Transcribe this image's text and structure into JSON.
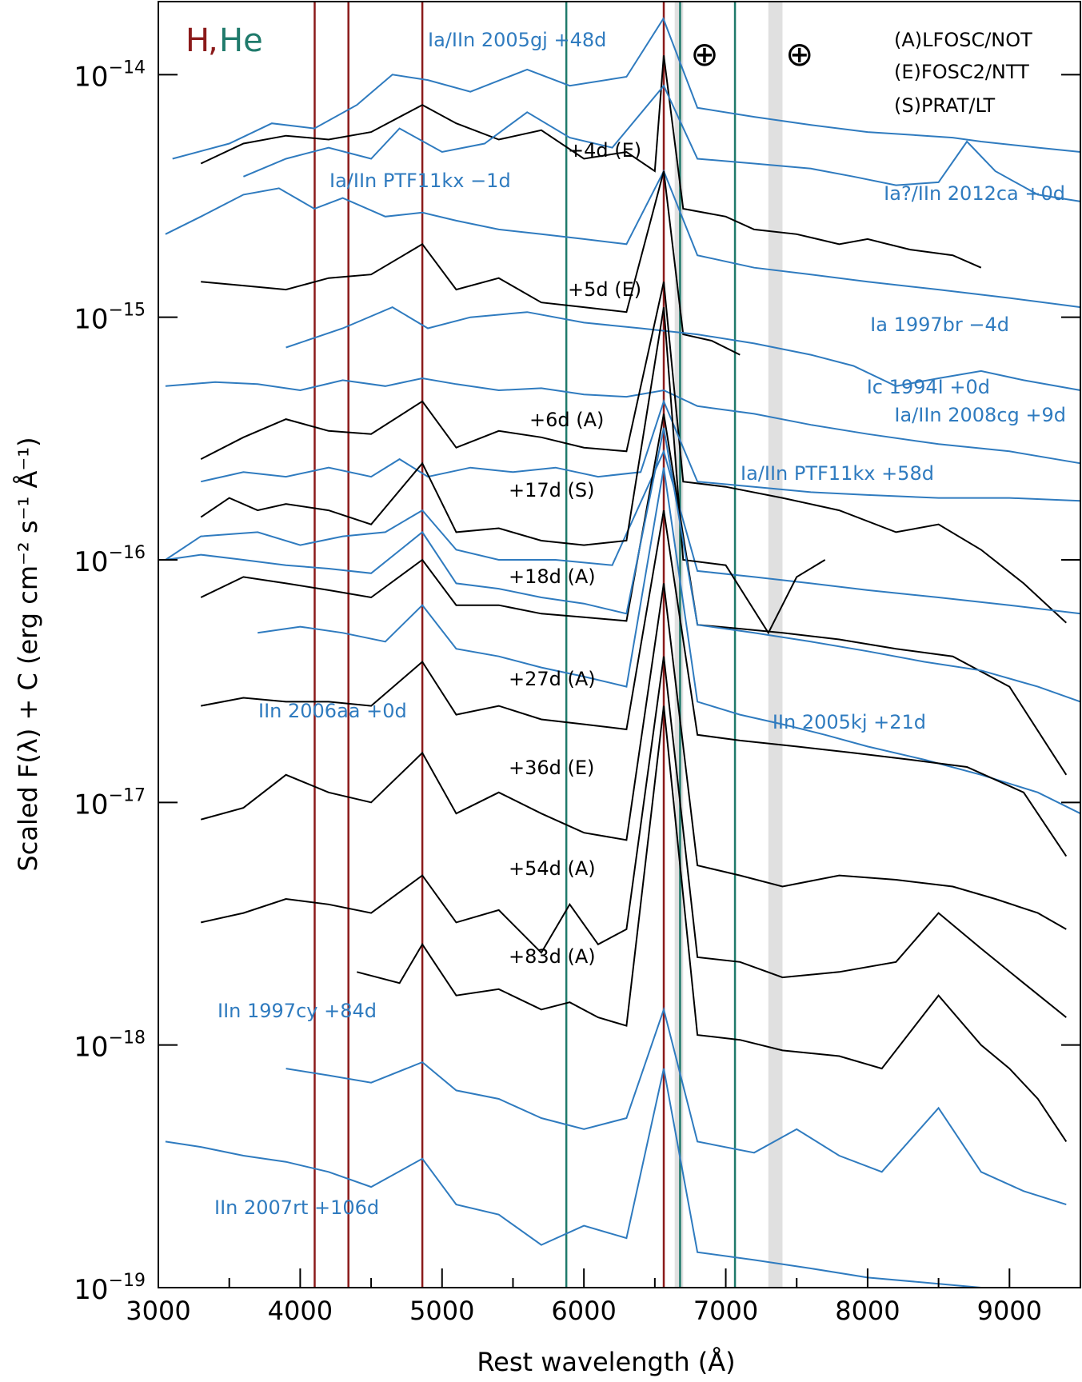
{
  "chart_data": {
    "type": "line",
    "title": "",
    "xlabel": "Rest wavelength (Å)",
    "ylabel": "Scaled F(λ) + C (erg cm⁻² s⁻¹ Å⁻¹)",
    "xlim": [
      3000,
      9500
    ],
    "ylim": [
      1e-19,
      2e-14
    ],
    "yscale": "log",
    "grid": false,
    "x_ticks": [
      3000,
      4000,
      5000,
      6000,
      7000,
      8000,
      9000
    ],
    "y_ticks": [
      {
        "value": 1e-14,
        "base": "10",
        "exp": "−14"
      },
      {
        "value": 1e-15,
        "base": "10",
        "exp": "−15"
      },
      {
        "value": 1e-16,
        "base": "10",
        "exp": "−16"
      },
      {
        "value": 1e-17,
        "base": "10",
        "exp": "−17"
      },
      {
        "value": 1e-18,
        "base": "10",
        "exp": "−18"
      },
      {
        "value": 1e-19,
        "base": "10",
        "exp": "−19"
      }
    ],
    "line_ids": {
      "h_label": "H",
      "comma": ",",
      "he_label": "He",
      "h_color": "#8b1a1a",
      "he_color": "#1f7a6b",
      "h_lines": [
        4102,
        4340,
        4861,
        6563
      ],
      "he_lines": [
        5876,
        6678,
        7065
      ]
    },
    "telluric": {
      "symbol": "⊕",
      "bands": [
        [
          6640,
          6700
        ],
        [
          7300,
          7400
        ]
      ],
      "symbol_x": [
        6850,
        7520
      ]
    },
    "instrument_legend": [
      "(A)LFOSC/NOT",
      "(E)FOSC2/NTT",
      "(S)PRAT/LT"
    ],
    "colors": {
      "observed": "#000000",
      "comparison": "#2f7bbf",
      "band": "#e0e0e0"
    },
    "series": [
      {
        "label": "Ia/IIn 2005gj +48d",
        "kind": "comparison",
        "x": [
          3100,
          3500,
          3800,
          4100,
          4400,
          4650,
          4900,
          5200,
          5600,
          5900,
          6300,
          6560,
          6800,
          7200,
          7600,
          8000,
          8400,
          8600,
          8800,
          9200,
          9500
        ],
        "y": [
          4.5e-15,
          5.2e-15,
          6.3e-15,
          6e-15,
          7.5e-15,
          1e-14,
          9.5e-15,
          8.5e-15,
          1.05e-14,
          9e-15,
          9.8e-15,
          1.7e-14,
          7.3e-15,
          6.7e-15,
          6.2e-15,
          5.8e-15,
          5.6e-15,
          5.5e-15,
          5.3e-15,
          5e-15,
          4.8e-15
        ]
      },
      {
        "label": "+4d (E)",
        "kind": "observed",
        "x": [
          3300,
          3600,
          3900,
          4200,
          4500,
          4861,
          5100,
          5400,
          5700,
          6000,
          6300,
          6500,
          6563,
          6700,
          7000,
          7200,
          7500,
          7800,
          8000,
          8300,
          8600,
          8800
        ],
        "y": [
          4.3e-15,
          5.2e-15,
          5.6e-15,
          5.4e-15,
          5.8e-15,
          7.5e-15,
          6.3e-15,
          5.4e-15,
          5.9e-15,
          4.5e-15,
          4.8e-15,
          4e-15,
          1.2e-14,
          2.8e-15,
          2.6e-15,
          2.3e-15,
          2.2e-15,
          2e-15,
          2.1e-15,
          1.9e-15,
          1.8e-15,
          1.6e-15
        ]
      },
      {
        "label": "Ia?/IIn 2012ca +0d",
        "kind": "comparison",
        "x": [
          3600,
          3900,
          4200,
          4500,
          4700,
          5000,
          5300,
          5600,
          5900,
          6200,
          6563,
          6800,
          7200,
          7600,
          7900,
          8200,
          8500,
          8700,
          8900,
          9200,
          9500
        ],
        "y": [
          3.8e-15,
          4.5e-15,
          5e-15,
          4.5e-15,
          6e-15,
          4.8e-15,
          5.2e-15,
          7e-15,
          5.5e-15,
          5e-15,
          9e-15,
          4.5e-15,
          4.3e-15,
          4.1e-15,
          3.8e-15,
          3.5e-15,
          3.6e-15,
          5.3e-15,
          4e-15,
          3.2e-15,
          3e-15
        ]
      },
      {
        "label": "Ia/IIn PTF11kx −1d",
        "kind": "comparison",
        "x": [
          3050,
          3300,
          3600,
          3850,
          4100,
          4300,
          4600,
          4861,
          5100,
          5400,
          5700,
          6000,
          6300,
          6563,
          6800,
          7200,
          7600,
          8000,
          8500,
          9000,
          9500
        ],
        "y": [
          2.2e-15,
          2.6e-15,
          3.2e-15,
          3.4e-15,
          2.8e-15,
          3.1e-15,
          2.6e-15,
          2.7e-15,
          2.5e-15,
          2.3e-15,
          2.2e-15,
          2.1e-15,
          2e-15,
          4e-15,
          1.8e-15,
          1.6e-15,
          1.5e-15,
          1.4e-15,
          1.3e-15,
          1.2e-15,
          1.1e-15
        ]
      },
      {
        "label": "+5d (E)",
        "kind": "observed",
        "x": [
          3300,
          3600,
          3900,
          4200,
          4500,
          4861,
          5100,
          5400,
          5700,
          6000,
          6300,
          6563,
          6700,
          6900,
          7100
        ],
        "y": [
          1.4e-15,
          1.35e-15,
          1.3e-15,
          1.45e-15,
          1.5e-15,
          2e-15,
          1.3e-15,
          1.45e-15,
          1.15e-15,
          1.1e-15,
          1.05e-15,
          4e-15,
          8.5e-16,
          8e-16,
          7e-16
        ]
      },
      {
        "label": "Ia 1997br −4d",
        "kind": "comparison",
        "x": [
          3900,
          4300,
          4650,
          4900,
          5200,
          5600,
          6000,
          6400,
          6800,
          7200,
          7600,
          7900,
          8200,
          8500,
          8800,
          9100,
          9500
        ],
        "y": [
          7.5e-16,
          9e-16,
          1.1e-15,
          9e-16,
          1e-15,
          1.05e-15,
          9.5e-16,
          9e-16,
          8.5e-16,
          7.8e-16,
          7e-16,
          6.3e-16,
          5.2e-16,
          5.6e-16,
          6e-16,
          5.5e-16,
          5e-16
        ]
      },
      {
        "label": "Ic 1994I +0d",
        "kind": "comparison",
        "x": [
          3050,
          3400,
          3700,
          4000,
          4300,
          4600,
          4861,
          5100,
          5400,
          5700,
          6000,
          6300,
          6563,
          6800,
          7200,
          7600,
          8000,
          8500,
          9000,
          9500
        ],
        "y": [
          5.2e-16,
          5.4e-16,
          5.3e-16,
          5e-16,
          5.5e-16,
          5.2e-16,
          5.6e-16,
          5.3e-16,
          5e-16,
          5.1e-16,
          4.8e-16,
          4.7e-16,
          5e-16,
          4.3e-16,
          4e-16,
          3.6e-16,
          3.3e-16,
          3e-16,
          2.8e-16,
          2.5e-16
        ]
      },
      {
        "label": "+6d (A)",
        "kind": "observed",
        "x": [
          3300,
          3600,
          3900,
          4200,
          4500,
          4861,
          5100,
          5400,
          5700,
          6000,
          6300,
          6563,
          6700,
          7000,
          7400,
          7800,
          8200,
          8500,
          8800,
          9100,
          9400
        ],
        "y": [
          2.6e-16,
          3.2e-16,
          3.8e-16,
          3.4e-16,
          3.3e-16,
          4.5e-16,
          2.9e-16,
          3.4e-16,
          3.2e-16,
          2.9e-16,
          2.8e-16,
          1.4e-15,
          2.1e-16,
          2e-16,
          1.8e-16,
          1.6e-16,
          1.3e-16,
          1.4e-16,
          1.1e-16,
          8e-17,
          5.5e-17
        ]
      },
      {
        "label": "Ia/IIn 2008cg +9d",
        "kind": "comparison",
        "x": [
          3300,
          3600,
          3900,
          4200,
          4500,
          4700,
          4900,
          5200,
          5500,
          5800,
          6100,
          6400,
          6563,
          6800,
          7200,
          7600,
          8000,
          8500,
          9000,
          9500
        ],
        "y": [
          2.1e-16,
          2.3e-16,
          2.2e-16,
          2.4e-16,
          2.2e-16,
          2.6e-16,
          2.2e-16,
          2.4e-16,
          2.3e-16,
          2.4e-16,
          2.2e-16,
          2.3e-16,
          4.5e-16,
          2.1e-16,
          2e-16,
          1.9e-16,
          1.85e-16,
          1.8e-16,
          1.8e-16,
          1.75e-16
        ]
      },
      {
        "label": "Ia/IIn PTF11kx +58d",
        "kind": "comparison",
        "x": [
          3050,
          3300,
          3700,
          4000,
          4300,
          4600,
          4861,
          5100,
          5400,
          5800,
          6200,
          6563,
          6800,
          7200,
          7600,
          8000,
          8500,
          9000,
          9500
        ],
        "y": [
          1e-16,
          1.25e-16,
          1.3e-16,
          1.15e-16,
          1.25e-16,
          1.3e-16,
          1.6e-16,
          1.1e-16,
          1e-16,
          1e-16,
          9.5e-17,
          2.8e-16,
          9e-17,
          8.5e-17,
          8e-17,
          7.5e-17,
          7e-17,
          6.5e-17,
          6e-17
        ]
      },
      {
        "label": "+17d (S)",
        "kind": "observed",
        "x": [
          3300,
          3500,
          3700,
          3900,
          4200,
          4500,
          4861,
          5100,
          5400,
          5700,
          6000,
          6300,
          6563,
          6700,
          7000,
          7300,
          7500,
          7700
        ],
        "y": [
          1.5e-16,
          1.8e-16,
          1.6e-16,
          1.7e-16,
          1.6e-16,
          1.4e-16,
          2.5e-16,
          1.3e-16,
          1.35e-16,
          1.2e-16,
          1.15e-16,
          1.2e-16,
          1.1e-15,
          1e-16,
          9.5e-17,
          5e-17,
          8.5e-17,
          1e-16
        ]
      },
      {
        "label": "+18d (A)",
        "kind": "observed",
        "x": [
          3300,
          3600,
          3900,
          4200,
          4500,
          4861,
          5100,
          5400,
          5700,
          6000,
          6300,
          6563,
          6800,
          7100,
          7400,
          7800,
          8200,
          8600,
          9000,
          9400
        ],
        "y": [
          7e-17,
          8.5e-17,
          8e-17,
          7.5e-17,
          7e-17,
          1e-16,
          6.5e-17,
          6.5e-17,
          6e-17,
          5.8e-17,
          5.6e-17,
          4e-16,
          5.4e-17,
          5.2e-17,
          5e-17,
          4.7e-17,
          4.3e-17,
          4e-17,
          3e-17,
          1.3e-17
        ]
      },
      {
        "label": "IIn 2005kj +21d",
        "kind": "comparison",
        "x": [
          3700,
          4000,
          4300,
          4600,
          4861,
          5100,
          5400,
          5700,
          6000,
          6300,
          6563,
          6800,
          7100,
          7400,
          7700,
          8000,
          8400,
          8800,
          9200,
          9500
        ],
        "y": [
          5e-17,
          5.3e-17,
          5e-17,
          4.6e-17,
          6.5e-17,
          4.3e-17,
          4e-17,
          3.6e-17,
          3.3e-17,
          3e-17,
          2.4e-16,
          2.6e-17,
          2.3e-17,
          2.1e-17,
          1.9e-17,
          1.7e-17,
          1.5e-17,
          1.3e-17,
          1.1e-17,
          9e-18
        ]
      },
      {
        "label": "IIn 2006aa +0d",
        "kind": "comparison",
        "x": [
          3050,
          3300,
          3600,
          3900,
          4200,
          4500,
          4861,
          5100,
          5400,
          5700,
          6000,
          6300,
          6563,
          6800,
          7200,
          7600,
          8000,
          8400,
          8800,
          9200,
          9500
        ],
        "y": [
          1e-16,
          1.05e-16,
          1e-16,
          9.5e-17,
          9.2e-17,
          8.8e-17,
          1.3e-16,
          8e-17,
          7.6e-17,
          7e-17,
          6.6e-17,
          6e-17,
          3.5e-16,
          5.4e-17,
          5e-17,
          4.6e-17,
          4.2e-17,
          3.8e-17,
          3.5e-17,
          3e-17,
          2.6e-17
        ]
      },
      {
        "label": "+27d (A)",
        "kind": "observed",
        "x": [
          3300,
          3600,
          3900,
          4200,
          4500,
          4861,
          5100,
          5400,
          5700,
          6000,
          6300,
          6563,
          6800,
          7100,
          7500,
          7900,
          8300,
          8700,
          9100,
          9400
        ],
        "y": [
          2.5e-17,
          2.7e-17,
          2.6e-17,
          2.6e-17,
          2.5e-17,
          3.8e-17,
          2.3e-17,
          2.5e-17,
          2.2e-17,
          2.1e-17,
          2e-17,
          1.6e-16,
          1.9e-17,
          1.8e-17,
          1.7e-17,
          1.6e-17,
          1.5e-17,
          1.4e-17,
          1.1e-17,
          6e-18
        ]
      },
      {
        "label": "+36d (E)",
        "kind": "observed",
        "x": [
          3300,
          3600,
          3900,
          4200,
          4500,
          4861,
          5100,
          5400,
          5700,
          6000,
          6300,
          6563,
          6800,
          7100,
          7400,
          7800,
          8200,
          8600,
          8900,
          9200,
          9400
        ],
        "y": [
          8.5e-18,
          9.5e-18,
          1.3e-17,
          1.1e-17,
          1e-17,
          1.6e-17,
          9e-18,
          1.1e-17,
          9e-18,
          7.5e-18,
          7e-18,
          8e-17,
          5.5e-18,
          5e-18,
          4.5e-18,
          5e-18,
          4.8e-18,
          4.5e-18,
          4e-18,
          3.5e-18,
          3e-18
        ]
      },
      {
        "label": "+54d (A)",
        "kind": "observed",
        "x": [
          3300,
          3600,
          3900,
          4200,
          4500,
          4861,
          5100,
          5400,
          5700,
          5900,
          6100,
          6300,
          6563,
          6800,
          7100,
          7400,
          7800,
          8200,
          8500,
          8800,
          9100,
          9400
        ],
        "y": [
          3.2e-18,
          3.5e-18,
          4e-18,
          3.8e-18,
          3.5e-18,
          5e-18,
          3.2e-18,
          3.6e-18,
          2.4e-18,
          3.8e-18,
          2.6e-18,
          3e-18,
          4e-17,
          2.3e-18,
          2.2e-18,
          1.9e-18,
          2e-18,
          2.2e-18,
          3.5e-18,
          2.5e-18,
          1.8e-18,
          1.3e-18
        ]
      },
      {
        "label": "+83d (A)",
        "kind": "observed",
        "x": [
          4400,
          4700,
          4861,
          5100,
          5400,
          5700,
          5900,
          6100,
          6300,
          6563,
          6800,
          7100,
          7400,
          7800,
          8100,
          8500,
          8800,
          9000,
          9200,
          9400
        ],
        "y": [
          2e-18,
          1.8e-18,
          2.6e-18,
          1.6e-18,
          1.7e-18,
          1.4e-18,
          1.5e-18,
          1.3e-18,
          1.2e-18,
          2.5e-17,
          1.1e-18,
          1.05e-18,
          9.5e-19,
          9e-19,
          8e-19,
          1.6e-18,
          1e-18,
          8e-19,
          6e-19,
          4e-19
        ]
      },
      {
        "label": "IIn 1997cy +84d",
        "kind": "comparison",
        "x": [
          3900,
          4200,
          4500,
          4861,
          5100,
          5400,
          5700,
          6000,
          6300,
          6563,
          6800,
          7200,
          7500,
          7800,
          8100,
          8500,
          8800,
          9100,
          9400
        ],
        "y": [
          8e-19,
          7.5e-19,
          7e-19,
          8.5e-19,
          6.5e-19,
          6e-19,
          5e-19,
          4.5e-19,
          5e-19,
          1.4e-18,
          4e-19,
          3.6e-19,
          4.5e-19,
          3.5e-19,
          3e-19,
          5.5e-19,
          3e-19,
          2.5e-19,
          2.2e-19
        ]
      },
      {
        "label": "IIn 2007rt +106d",
        "kind": "comparison",
        "x": [
          3050,
          3300,
          3600,
          3900,
          4200,
          4500,
          4861,
          5100,
          5400,
          5700,
          6000,
          6300,
          6563,
          6800,
          7200,
          7600,
          8000,
          8400,
          8800,
          9200,
          9500
        ],
        "y": [
          4e-19,
          3.8e-19,
          3.5e-19,
          3.3e-19,
          3e-19,
          2.6e-19,
          3.4e-19,
          2.2e-19,
          2e-19,
          1.5e-19,
          1.8e-19,
          1.6e-19,
          8e-19,
          1.4e-19,
          1.3e-19,
          1.2e-19,
          1.1e-19,
          1.05e-19,
          1e-19,
          1e-19,
          1e-19
        ]
      }
    ]
  }
}
